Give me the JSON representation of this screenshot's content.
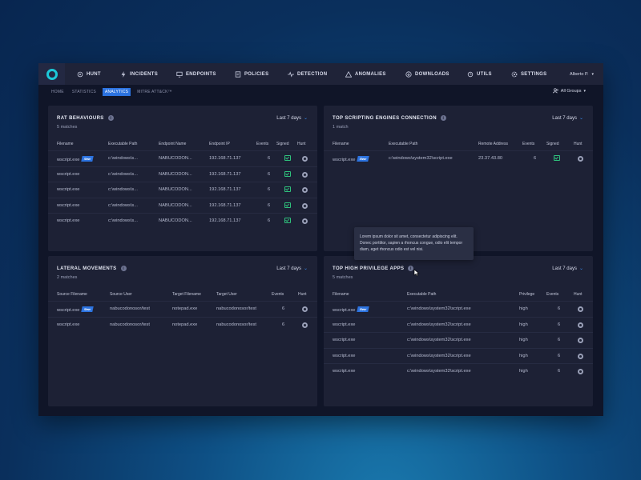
{
  "nav": {
    "items": [
      {
        "label": "HUNT",
        "icon": "hunt-icon"
      },
      {
        "label": "INCIDENTS",
        "icon": "bolt-icon"
      },
      {
        "label": "ENDPOINTS",
        "icon": "monitor-icon"
      },
      {
        "label": "POLICIES",
        "icon": "document-icon"
      },
      {
        "label": "DETECTION",
        "icon": "pulse-icon"
      },
      {
        "label": "ANOMALIES",
        "icon": "warning-icon"
      },
      {
        "label": "DOWNLOADS",
        "icon": "download-icon"
      },
      {
        "label": "UTILS",
        "icon": "utils-icon"
      },
      {
        "label": "SETTINGS",
        "icon": "gear-icon"
      }
    ],
    "user": "Alberto P."
  },
  "subnav": {
    "tabs": [
      "HOME",
      "STATISTICS",
      "ANALYTICS",
      "MITRE ATT&CK™"
    ],
    "active": "ANALYTICS",
    "groups_label": "All Groups"
  },
  "rat": {
    "title": "RAT BEHAVIOURS",
    "matches": "5 matches",
    "range": "Last 7 days",
    "headers": [
      "Filename",
      "Executable Path",
      "Endpoint Name",
      "Endpoint IP",
      "Events",
      "Signed",
      "Hunt"
    ],
    "rows": [
      {
        "filename": "wscript.exe",
        "new": "New",
        "path": "c:\\windows\\s...",
        "endpoint": "NABUCODON...",
        "ip": "192.168.71.137",
        "events": "6"
      },
      {
        "filename": "wscript.exe",
        "path": "c:\\windows\\s...",
        "endpoint": "NABUCODON...",
        "ip": "192.168.71.137",
        "events": "6"
      },
      {
        "filename": "wscript.exe",
        "path": "c:\\windows\\s...",
        "endpoint": "NABUCODON...",
        "ip": "192.168.71.137",
        "events": "6"
      },
      {
        "filename": "wscript.exe",
        "path": "c:\\windows\\s...",
        "endpoint": "NABUCODON...",
        "ip": "192.168.71.137",
        "events": "6"
      },
      {
        "filename": "wscript.exe",
        "path": "c:\\windows\\s...",
        "endpoint": "NABUCODON...",
        "ip": "192.168.71.137",
        "events": "6"
      }
    ]
  },
  "scripting": {
    "title": "TOP SCRIPTING ENGINES CONNECTION",
    "matches": "1 match",
    "range": "Last 7 days",
    "headers": [
      "Filename",
      "Executable Path",
      "Remote Address",
      "Events",
      "Signed",
      "Hunt"
    ],
    "rows": [
      {
        "filename": "wscript.exe",
        "new": "New",
        "path": "c:\\windows\\system32\\script.exe",
        "remote": "23.37.43.80",
        "events": "6"
      }
    ]
  },
  "lateral": {
    "title": "LATERAL MOVEMENTS",
    "matches": "2 matches",
    "range": "Last 7 days",
    "headers": [
      "Source Filename",
      "Source User",
      "Target Filename",
      "Target User",
      "Events",
      "Hunt"
    ],
    "rows": [
      {
        "source": "wscript.exe",
        "new": "New",
        "source_user": "nabucodonosor/test",
        "target": "notepad.exe",
        "target_user": "nabucodonosor/test",
        "events": "6"
      },
      {
        "source": "wscript.exe",
        "source_user": "nabucodonosor/test",
        "target": "notepad.exe",
        "target_user": "nabucodonosor/test",
        "events": "6"
      }
    ]
  },
  "privilege": {
    "title": "TOP HIGH PRIVILEGE APPS",
    "matches": "5 matches",
    "range": "Last 7 days",
    "headers": [
      "Filename",
      "Executable Path",
      "Privilege",
      "Events",
      "Hunt"
    ],
    "rows": [
      {
        "filename": "wscript.exe",
        "new": "New",
        "path": "c:\\windows\\system32\\script.exe",
        "privilege": "high",
        "events": "6"
      },
      {
        "filename": "wscript.exe",
        "path": "c:\\windows\\system32\\script.exe",
        "privilege": "high",
        "events": "6"
      },
      {
        "filename": "wscript.exe",
        "path": "c:\\windows\\system32\\script.exe",
        "privilege": "high",
        "events": "6"
      },
      {
        "filename": "wscript.exe",
        "path": "c:\\windows\\system32\\script.exe",
        "privilege": "high",
        "events": "6"
      },
      {
        "filename": "wscript.exe",
        "path": "c:\\windows\\system32\\script.exe",
        "privilege": "high",
        "events": "6"
      }
    ]
  },
  "tooltip": {
    "text": "Lorem ipsum dolor sit amet, consectetur adipiscing elit. Donec porttitor, sapien a rhoncus congue, odio elit tempor diam, eget rhoncus odio est vel nisi."
  },
  "colors": {
    "accent": "#2c73e0",
    "logo": "#1cc8d8",
    "signed": "#2fc07c"
  }
}
